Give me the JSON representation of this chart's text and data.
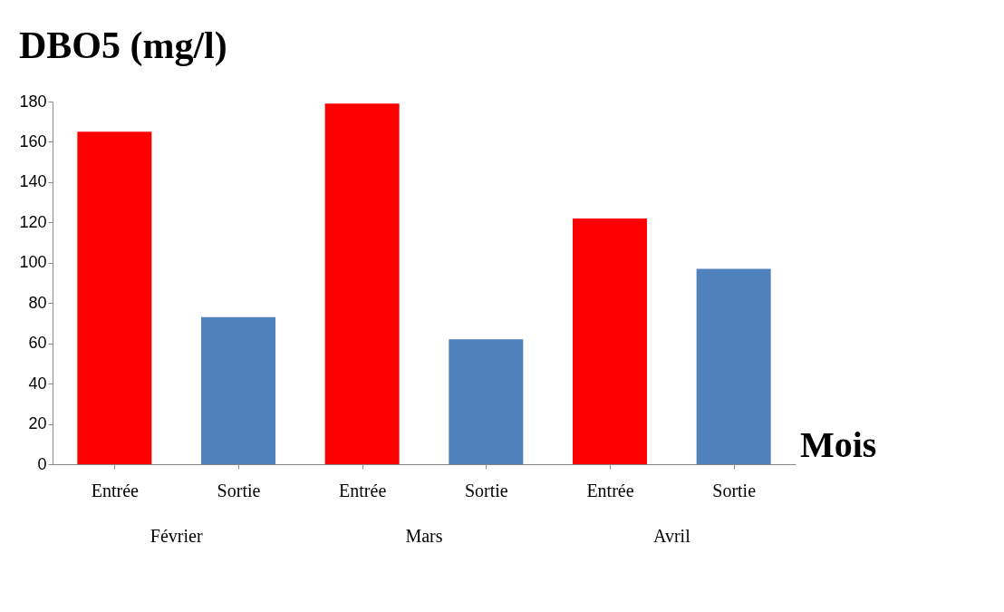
{
  "chart_data": {
    "type": "bar",
    "title": "DBO5 (mg/l)",
    "xlabel": "Mois",
    "categories": [
      "Entrée",
      "Sortie",
      "Entrée",
      "Sortie",
      "Entrée",
      "Sortie"
    ],
    "values": [
      165,
      73,
      179,
      62,
      122,
      97
    ],
    "colors": [
      "#ff0000",
      "#4f81bd",
      "#ff0000",
      "#4f81bd",
      "#ff0000",
      "#4f81bd"
    ],
    "annotations": [
      "Février",
      "Mars",
      "Avril"
    ],
    "ylim": [
      0,
      180
    ],
    "yticks": [
      0,
      20,
      40,
      60,
      80,
      100,
      120,
      140,
      160,
      180
    ],
    "grid": false
  }
}
